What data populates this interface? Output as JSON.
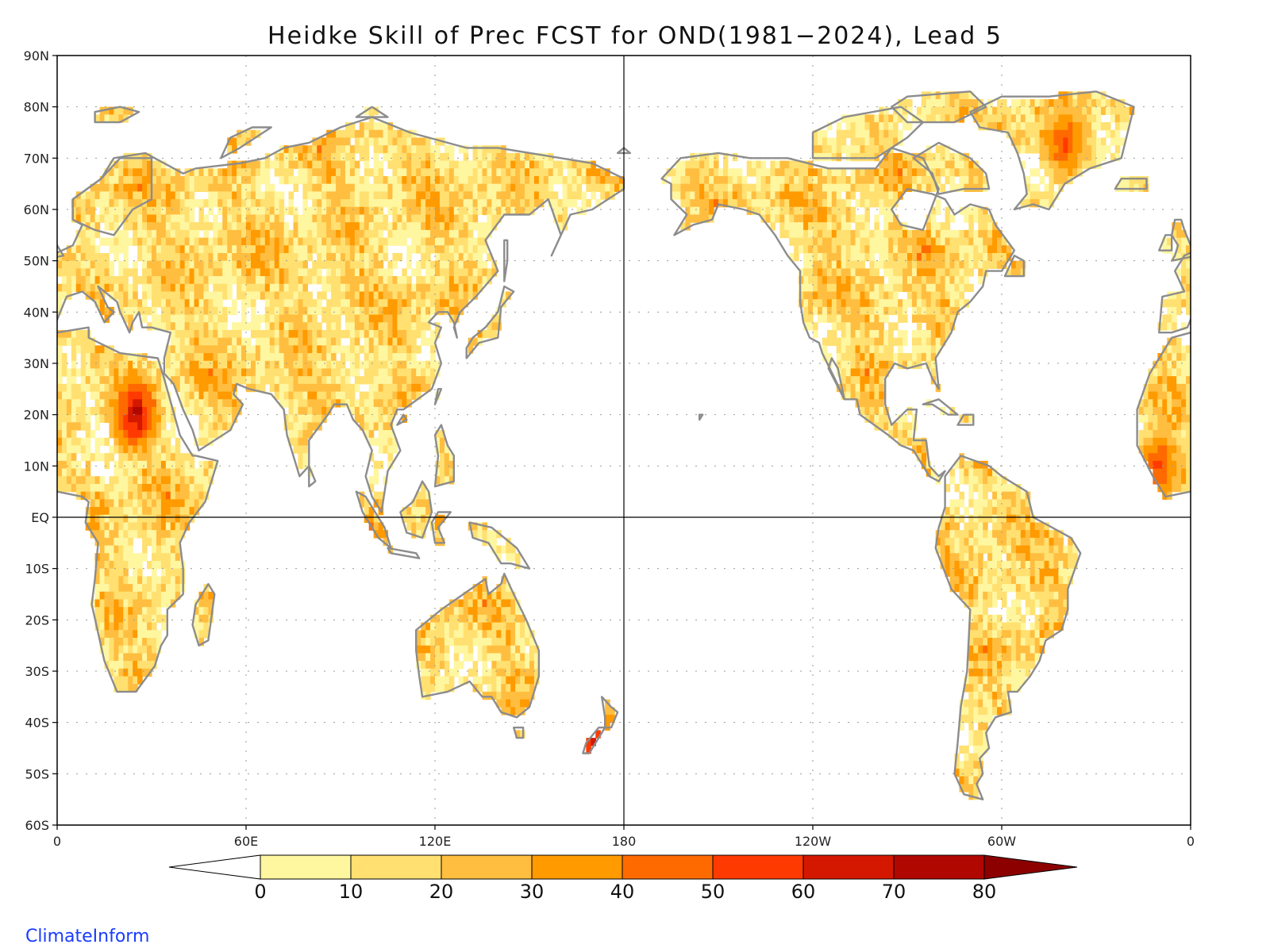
{
  "title": "Heidke Skill of Prec FCST for OND(1981−2024), Lead 5",
  "brand": "ClimateInform",
  "map": {
    "projection": "equirectangular",
    "lon_range": [
      0,
      360
    ],
    "lat_range": [
      -60,
      90
    ],
    "center_line_lon": 180,
    "equator_line": true,
    "grid": "dotted",
    "lat_labels": [
      "60S",
      "50S",
      "40S",
      "30S",
      "20S",
      "10S",
      "EQ",
      "10N",
      "20N",
      "30N",
      "40N",
      "50N",
      "60N",
      "70N",
      "80N",
      "90N"
    ],
    "lat_values": [
      -60,
      -50,
      -40,
      -30,
      -20,
      -10,
      0,
      10,
      20,
      30,
      40,
      50,
      60,
      70,
      80,
      90
    ],
    "lon_labels": [
      "0",
      "60E",
      "120E",
      "180",
      "120W",
      "60W",
      "0"
    ],
    "lon_values": [
      0,
      60,
      120,
      180,
      240,
      300,
      360
    ],
    "coastline_color": "#8c8c8c",
    "highlight_regions": [
      {
        "region": "Sahel / Chad",
        "lon": 25,
        "lat": 20,
        "skill": 75
      },
      {
        "region": "Greenland",
        "lon": 320,
        "lat": 73,
        "skill": 55
      },
      {
        "region": "New Zealand",
        "lon": 171,
        "lat": -44,
        "skill": 65
      },
      {
        "region": "West Africa",
        "lon": 350,
        "lat": 10,
        "skill": 55
      }
    ]
  },
  "colorbar": {
    "ticks": [
      "0",
      "10",
      "20",
      "30",
      "40",
      "50",
      "60",
      "70",
      "80"
    ],
    "colors": [
      "#ffffff",
      "#fff6a0",
      "#ffe070",
      "#ffbe40",
      "#ff9a00",
      "#ff6a00",
      "#ff3a00",
      "#d41800",
      "#b00800",
      "#8c0000"
    ]
  }
}
